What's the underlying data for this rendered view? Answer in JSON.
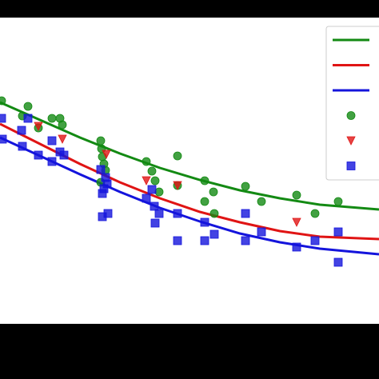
{
  "chart_data": {
    "type": "scatter",
    "xlim": [
      0,
      474
    ],
    "ylim": [
      0,
      383
    ],
    "legend": "upper right",
    "series": [
      {
        "kind": "line",
        "color": "#138a13",
        "x": [
          0,
          50,
          100,
          150,
          200,
          250,
          300,
          350,
          400,
          474
        ],
        "values": [
          277,
          255,
          233,
          213,
          195,
          180,
          167,
          157,
          149,
          143
        ]
      },
      {
        "kind": "line",
        "color": "#e01414",
        "x": [
          0,
          50,
          100,
          150,
          200,
          250,
          300,
          350,
          400,
          474
        ],
        "values": [
          250,
          225,
          200,
          177,
          157,
          140,
          127,
          116,
          109,
          106
        ]
      },
      {
        "kind": "line",
        "color": "#1414dc",
        "x": [
          0,
          50,
          100,
          150,
          200,
          250,
          300,
          350,
          400,
          474
        ],
        "values": [
          233,
          210,
          187,
          165,
          145,
          128,
          113,
          102,
          94,
          87
        ]
      },
      {
        "kind": "circle",
        "color": "#138a13",
        "x": [
          2,
          28,
          35,
          48,
          65,
          75,
          78,
          126,
          127,
          128,
          130,
          132,
          126,
          183,
          190,
          194,
          199,
          222,
          222,
          256,
          256,
          267,
          268,
          307,
          327,
          371,
          394,
          423
        ],
        "values": [
          279,
          260,
          272,
          245,
          257,
          257,
          249,
          229,
          219,
          209,
          200,
          192,
          177,
          203,
          191,
          179,
          165,
          210,
          173,
          179,
          153,
          165,
          138,
          172,
          153,
          161,
          138,
          153
        ]
      },
      {
        "kind": "triangle",
        "color": "#e01414",
        "x": [
          133,
          78,
          183,
          222,
          371,
          48
        ],
        "values": [
          212,
          231,
          179,
          173,
          127,
          247
        ]
      },
      {
        "kind": "square",
        "color": "#1414dc",
        "x": [
          2,
          3,
          27,
          28,
          35,
          48,
          65,
          65,
          75,
          80,
          126,
          128,
          130,
          132,
          134,
          128,
          135,
          190,
          183,
          193,
          199,
          194,
          222,
          222,
          256,
          256,
          268,
          307,
          307,
          327,
          371,
          394,
          423,
          423
        ],
        "values": [
          257,
          231,
          242,
          222,
          257,
          211,
          229,
          203,
          215,
          211,
          193,
          163,
          169,
          183,
          175,
          134,
          138,
          168,
          157,
          147,
          138,
          126,
          138,
          104,
          127,
          104,
          112,
          138,
          104,
          115,
          96,
          104,
          115,
          77
        ]
      }
    ]
  }
}
